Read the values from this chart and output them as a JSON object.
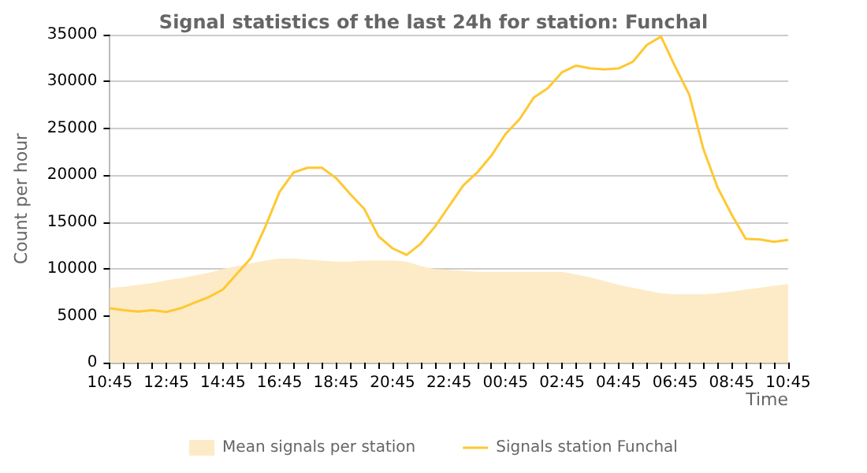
{
  "chart_data": {
    "type": "line",
    "title": "Signal statistics of the last 24h for station: Funchal",
    "xlabel": "Time",
    "ylabel": "Count per hour",
    "categories": [
      "10:45",
      null,
      null,
      null,
      "12:45",
      null,
      null,
      null,
      "14:45",
      null,
      null,
      null,
      "16:45",
      null,
      null,
      null,
      "18:45",
      null,
      null,
      null,
      "20:45",
      null,
      null,
      null,
      "22:45",
      null,
      null,
      null,
      "00:45",
      null,
      null,
      null,
      "02:45",
      null,
      null,
      null,
      "04:45",
      null,
      null,
      null,
      "06:45",
      null,
      null,
      null,
      "08:45",
      null,
      null,
      null,
      "10:45"
    ],
    "ylim": [
      0,
      35000
    ],
    "yticks": [
      0,
      5000,
      10000,
      15000,
      20000,
      25000,
      30000,
      35000
    ],
    "grid": "y",
    "legend": "bottom",
    "series": [
      {
        "name": "Mean signals per station",
        "type": "area",
        "color": "#fdebc8",
        "values": [
          8000,
          8100,
          8300,
          8500,
          8800,
          9000,
          9300,
          9600,
          10000,
          10300,
          10600,
          10900,
          11100,
          11100,
          11000,
          10900,
          10800,
          10800,
          10900,
          10900,
          10900,
          10800,
          10300,
          10000,
          9900,
          9800,
          9700,
          9700,
          9700,
          9700,
          9700,
          9700,
          9700,
          9400,
          9100,
          8700,
          8300,
          8000,
          7700,
          7400,
          7300,
          7300,
          7300,
          7400,
          7600,
          7800,
          8000,
          8200,
          8400
        ]
      },
      {
        "name": "Signals station Funchal",
        "type": "line",
        "color": "#ffc832",
        "values": [
          5800,
          5600,
          5450,
          5600,
          5400,
          5800,
          6400,
          7000,
          7800,
          9500,
          11200,
          14500,
          18200,
          20300,
          20800,
          20800,
          19700,
          18000,
          16400,
          13500,
          12200,
          11500,
          12700,
          14500,
          16700,
          18900,
          20300,
          22100,
          24400,
          26000,
          28300,
          29300,
          31000,
          31700,
          31400,
          31300,
          31400,
          32100,
          33900,
          34800,
          31600,
          28600,
          22800,
          18700,
          15800,
          13200,
          13150,
          12900,
          13100
        ]
      }
    ]
  }
}
